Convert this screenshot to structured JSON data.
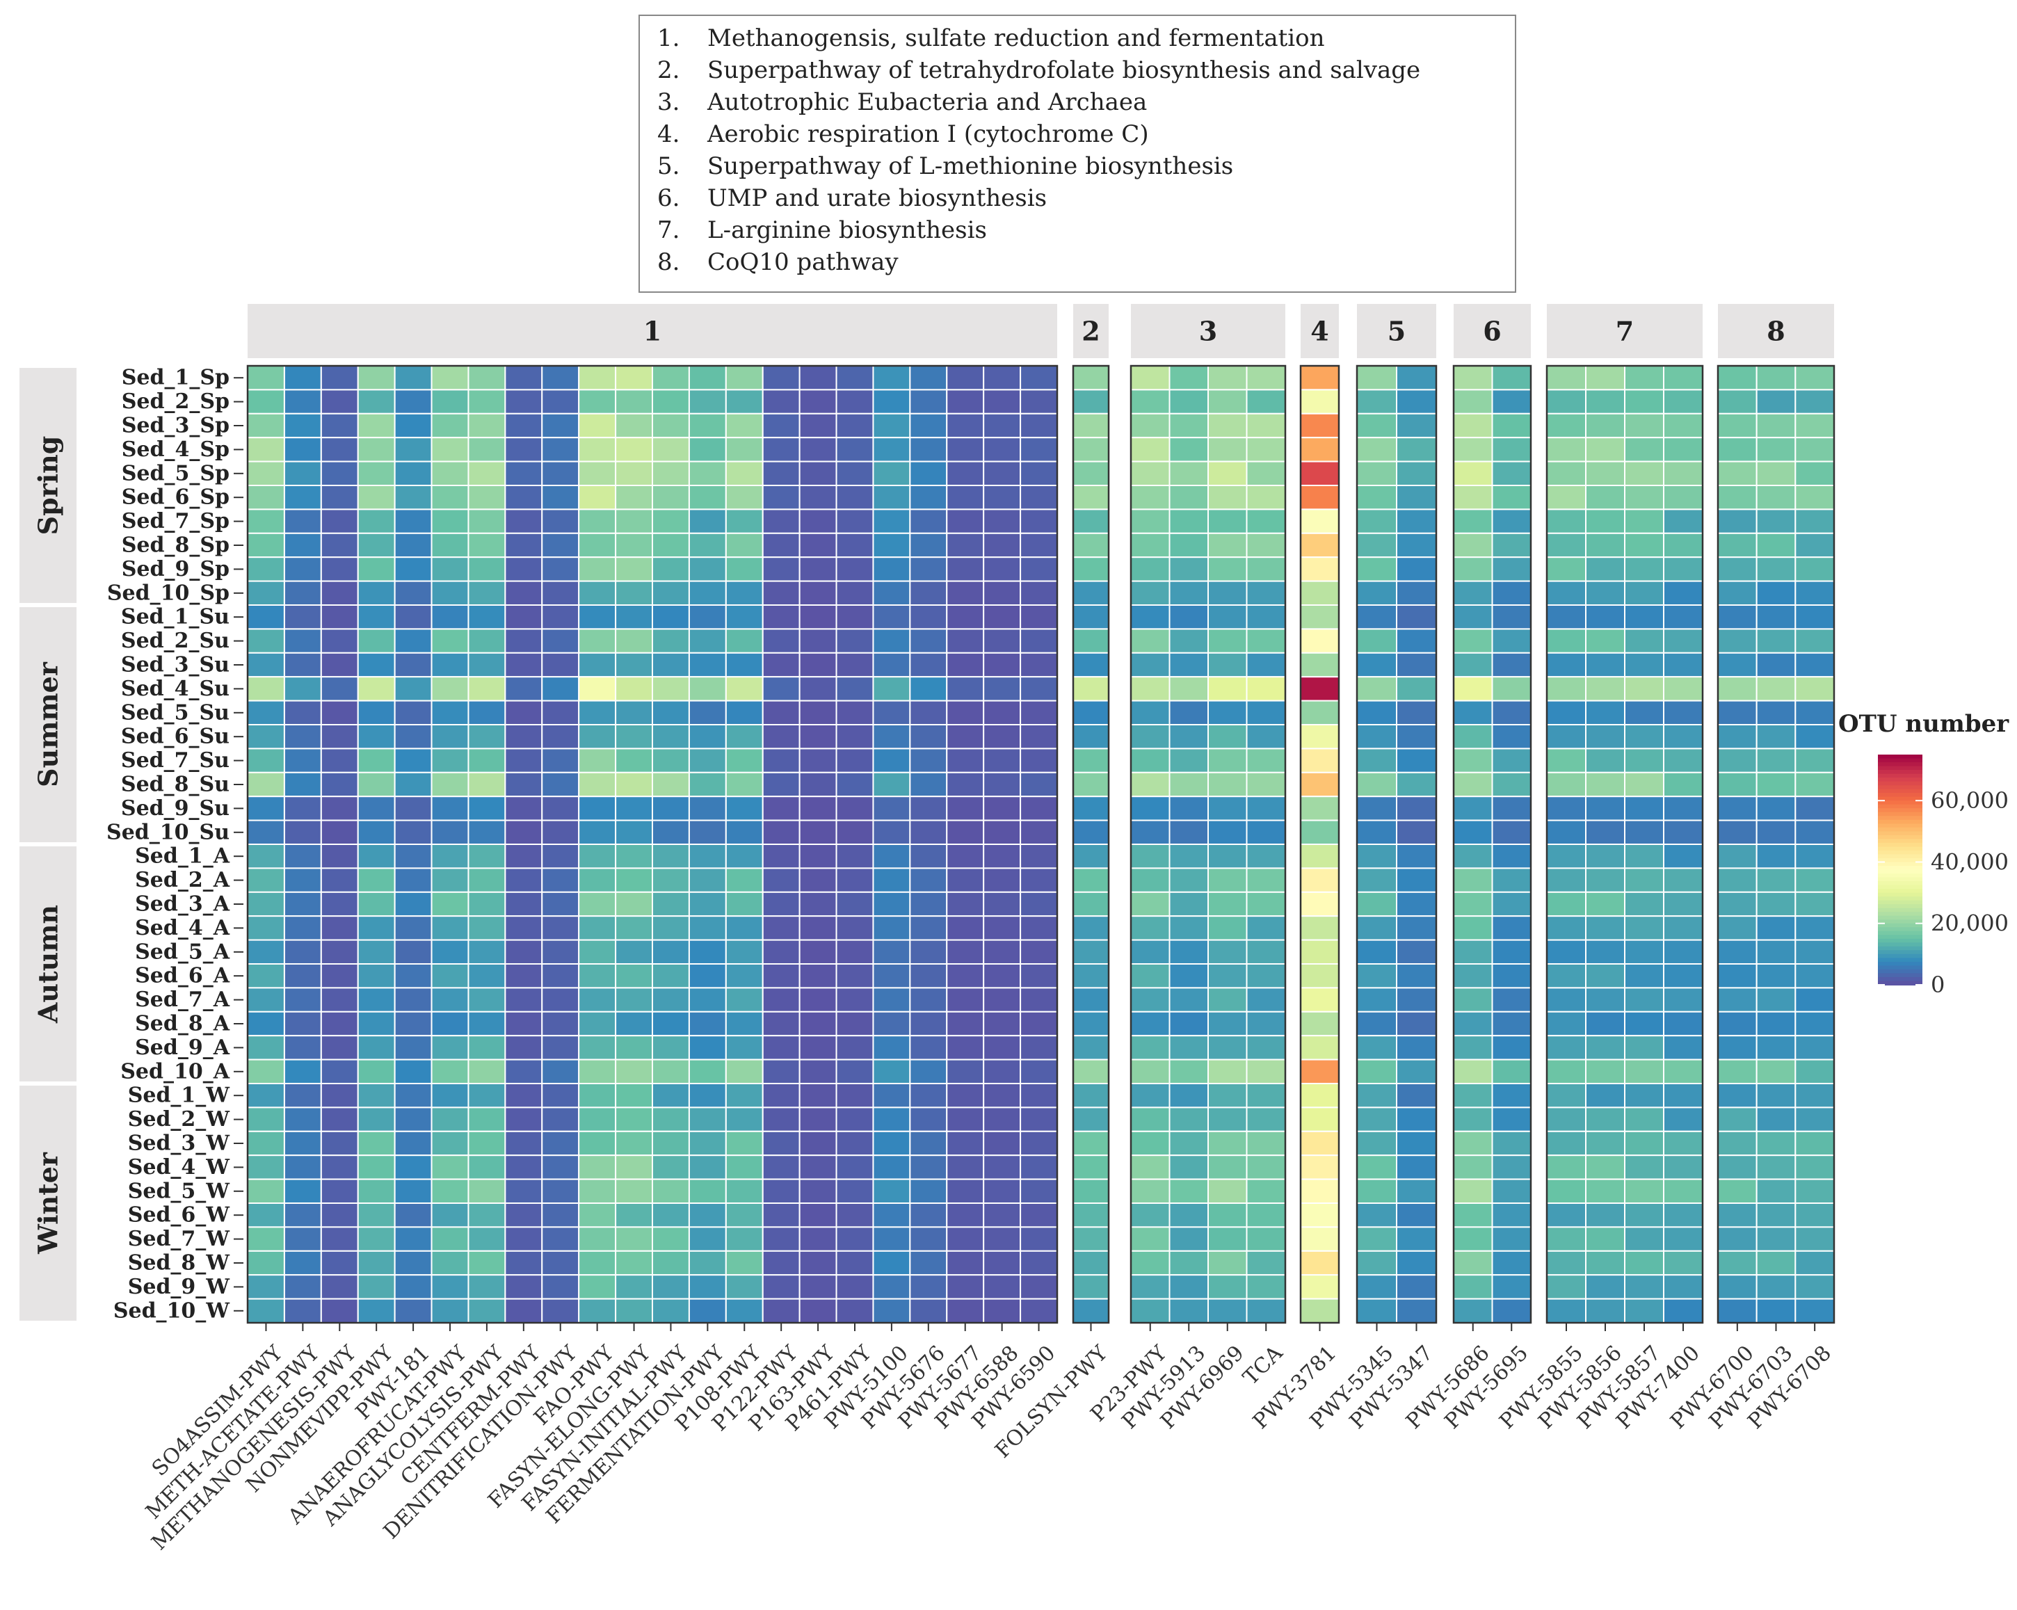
{
  "legend_box": {
    "items": [
      {
        "num": "1.",
        "label": "Methanogensis, sulfate reduction and fermentation"
      },
      {
        "num": "2.",
        "label": "Superpathway of tetrahydrofolate biosynthesis and salvage"
      },
      {
        "num": "3.",
        "label": "Autotrophic Eubacteria and Archaea"
      },
      {
        "num": "4.",
        "label": "Aerobic respiration I (cytochrome C)"
      },
      {
        "num": "5.",
        "label": "Superpathway of L-methionine biosynthesis"
      },
      {
        "num": "6.",
        "label": "UMP and urate biosynthesis"
      },
      {
        "num": "7.",
        "label": "L-arginine biosynthesis"
      },
      {
        "num": "8.",
        "label": "CoQ10 pathway"
      }
    ]
  },
  "colors": {
    "palette": [
      "#5E4FA2",
      "#3288BD",
      "#66C2A5",
      "#ABDDA4",
      "#E6F598",
      "#FFFFBF",
      "#FEE08B",
      "#FDAE61",
      "#F46D43",
      "#D53E4F",
      "#9E0142"
    ],
    "strip_fill": "#E6E4E4",
    "panel_border": "#333333",
    "cell_border": "#ffffff"
  },
  "chart_data": {
    "type": "heatmap",
    "colorbar": {
      "title": "OTU number",
      "min": 0,
      "max": 75000,
      "ticks": [
        0,
        20000,
        40000,
        60000
      ],
      "tick_labels": [
        "0",
        "20,000",
        "40,000",
        "60,000"
      ]
    },
    "seasons": [
      {
        "label": "Spring",
        "start": 0,
        "count": 10
      },
      {
        "label": "Summer",
        "start": 10,
        "count": 10
      },
      {
        "label": "Autumn",
        "start": 20,
        "count": 10
      },
      {
        "label": "Winter",
        "start": 30,
        "count": 10
      }
    ],
    "samples": [
      "Sed_1_Sp",
      "Sed_2_Sp",
      "Sed_3_Sp",
      "Sed_4_Sp",
      "Sed_5_Sp",
      "Sed_6_Sp",
      "Sed_7_Sp",
      "Sed_8_Sp",
      "Sed_9_Sp",
      "Sed_10_Sp",
      "Sed_1_Su",
      "Sed_2_Su",
      "Sed_3_Su",
      "Sed_4_Su",
      "Sed_5_Su",
      "Sed_6_Su",
      "Sed_7_Su",
      "Sed_8_Su",
      "Sed_9_Su",
      "Sed_10_Su",
      "Sed_1_A",
      "Sed_2_A",
      "Sed_3_A",
      "Sed_4_A",
      "Sed_5_A",
      "Sed_6_A",
      "Sed_7_A",
      "Sed_8_A",
      "Sed_9_A",
      "Sed_10_A",
      "Sed_1_W",
      "Sed_2_W",
      "Sed_3_W",
      "Sed_4_W",
      "Sed_5_W",
      "Sed_6_W",
      "Sed_7_W",
      "Sed_8_W",
      "Sed_9_W",
      "Sed_10_W"
    ],
    "sample_factors": [
      1.0,
      0.72,
      0.98,
      1.02,
      1.05,
      1.02,
      0.72,
      0.78,
      0.74,
      0.5,
      0.38,
      0.72,
      0.45,
      1.25,
      0.38,
      0.52,
      0.74,
      0.98,
      0.35,
      0.32,
      0.55,
      0.68,
      0.72,
      0.55,
      0.48,
      0.52,
      0.5,
      0.42,
      0.55,
      0.9,
      0.55,
      0.62,
      0.72,
      0.76,
      0.82,
      0.62,
      0.68,
      0.7,
      0.58,
      0.48
    ],
    "panels": [
      {
        "label": "1",
        "columns": [
          "SO4ASSIM-PWY",
          "METH-ACETATE-PWY",
          "METHANOGENESIS-PWY",
          "NONMEVIPP-PWY",
          "PWY-181",
          "ANAEROFRUCAT-PWY",
          "ANAGLYCOLYSIS-PWY",
          "CENTFERM-PWY",
          "DENITRIFICATION-PWY",
          "FAO-PWY",
          "FASYN-ELONG-PWY",
          "FASYN-INITIAL-PWY",
          "FERMENTATION-PWY",
          "P108-PWY",
          "P122-PWY",
          "P163-PWY",
          "P461-PWY",
          "PWY-5100",
          "PWY-5676",
          "PWY-5677",
          "PWY-6588",
          "PWY-6590"
        ],
        "base": [
          20000,
          8000,
          3000,
          19000,
          9000,
          19000,
          21000,
          3000,
          5000,
          24000,
          24000,
          20000,
          16000,
          20000,
          2500,
          1500,
          2500,
          10000,
          6000,
          2000,
          2000,
          2500
        ]
      },
      {
        "label": "2",
        "columns": [
          "FOLSYN-PWY"
        ],
        "base": [
          20000
        ]
      },
      {
        "label": "3",
        "columns": [
          "P23-PWY",
          "PWY-5913",
          "PWY-6969",
          "TCA"
        ],
        "base": [
          22000,
          18000,
          23000,
          22000
        ]
      },
      {
        "label": "4",
        "columns": [
          "PWY-3781"
        ],
        "base": [
          55000
        ]
      },
      {
        "label": "5",
        "columns": [
          "PWY-5345",
          "PWY-5347"
        ],
        "base": [
          18000,
          11000
        ]
      },
      {
        "label": "6",
        "columns": [
          "PWY-5686",
          "PWY-5695"
        ],
        "base": [
          24000,
          14000
        ]
      },
      {
        "label": "7",
        "columns": [
          "PWY-5855",
          "PWY-5856",
          "PWY-5857",
          "PWY-7400"
        ],
        "base": [
          19000,
          19000,
          19000,
          17000
        ]
      },
      {
        "label": "8",
        "columns": [
          "PWY-6700",
          "PWY-6703",
          "PWY-6708"
        ],
        "base": [
          17000,
          17000,
          17000
        ]
      }
    ]
  }
}
